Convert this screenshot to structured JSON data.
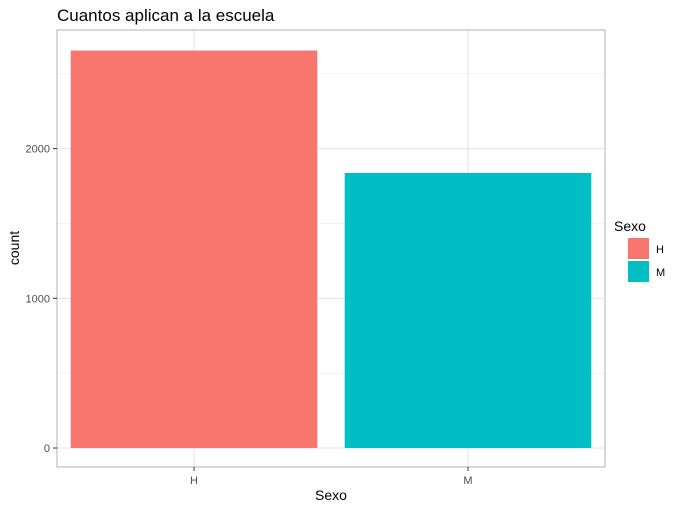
{
  "chart_data": {
    "type": "bar",
    "title": "Cuantos aplican a la escuela",
    "xlabel": "Sexo",
    "ylabel": "count",
    "categories": [
      "H",
      "M"
    ],
    "values": [
      2655,
      1837
    ],
    "colors": [
      "#F8766D",
      "#00BFC4"
    ],
    "ylim": [
      0,
      2800
    ],
    "yticks": [
      0,
      1000,
      2000
    ],
    "yminor_ticks": [
      500,
      1500,
      2500
    ],
    "ytick_labels": [
      "0",
      "1000",
      "2000"
    ],
    "grid": true,
    "legend": {
      "title": "Sexo",
      "position": "right",
      "entries": [
        {
          "label": "H",
          "color": "#F8766D"
        },
        {
          "label": "M",
          "color": "#00BFC4"
        }
      ]
    }
  }
}
